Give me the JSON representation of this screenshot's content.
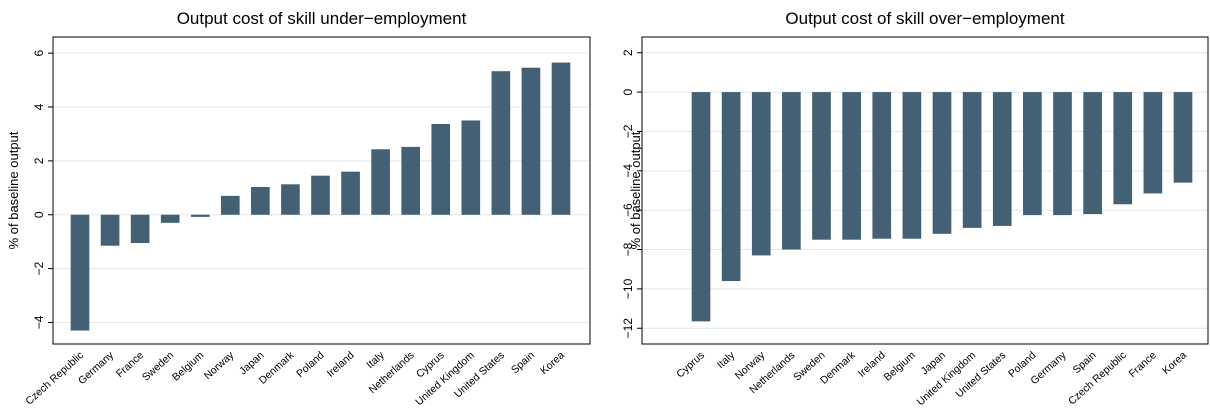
{
  "chart_data": [
    {
      "type": "bar",
      "title": "Output cost of skill under−employment",
      "xlabel": "",
      "ylabel": "% of baseline output",
      "ylim": [
        -4.8,
        6.6
      ],
      "yticks": [
        -4,
        -2,
        0,
        2,
        4,
        6
      ],
      "ytick_labels": [
        "−4",
        "−2",
        "0",
        "2",
        "4",
        "6"
      ],
      "grid": true,
      "bar_color": "#436075",
      "categories": [
        "Czech Republic",
        "Germany",
        "France",
        "Sweden",
        "Belgium",
        "Norway",
        "Japan",
        "Denmark",
        "Poland",
        "Ireland",
        "Italy",
        "Netherlands",
        "Cyprus",
        "United Kingdom",
        "United States",
        "Spain",
        "Korea"
      ],
      "values": [
        -4.3,
        -1.15,
        -1.05,
        -0.3,
        -0.08,
        0.7,
        1.03,
        1.13,
        1.45,
        1.6,
        2.43,
        2.52,
        3.37,
        3.5,
        5.33,
        5.46,
        5.65
      ]
    },
    {
      "type": "bar",
      "title": "Output cost of skill over−employment",
      "xlabel": "",
      "ylabel": "% of baseline output",
      "ylim": [
        -12.8,
        2.8
      ],
      "yticks": [
        -12,
        -10,
        -8,
        -6,
        -4,
        -2,
        0,
        2
      ],
      "ytick_labels": [
        "−12",
        "−10",
        "−8",
        "−6",
        "−4",
        "−2",
        "0",
        "2"
      ],
      "grid": true,
      "bar_color": "#436075",
      "categories": [
        "Cyprus",
        "Italy",
        "Norway",
        "Netherlands",
        "Sweden",
        "Denmark",
        "Ireland",
        "Belgium",
        "Japan",
        "United Kingdom",
        "United States",
        "Poland",
        "Germany",
        "Spain",
        "Czech Republic",
        "France",
        "Korea"
      ],
      "values": [
        -11.65,
        -9.6,
        -8.3,
        -8.0,
        -7.5,
        -7.5,
        -7.45,
        -7.45,
        -7.2,
        -6.9,
        -6.8,
        -6.25,
        -6.25,
        -6.2,
        -5.7,
        -5.15,
        -4.6
      ]
    }
  ]
}
